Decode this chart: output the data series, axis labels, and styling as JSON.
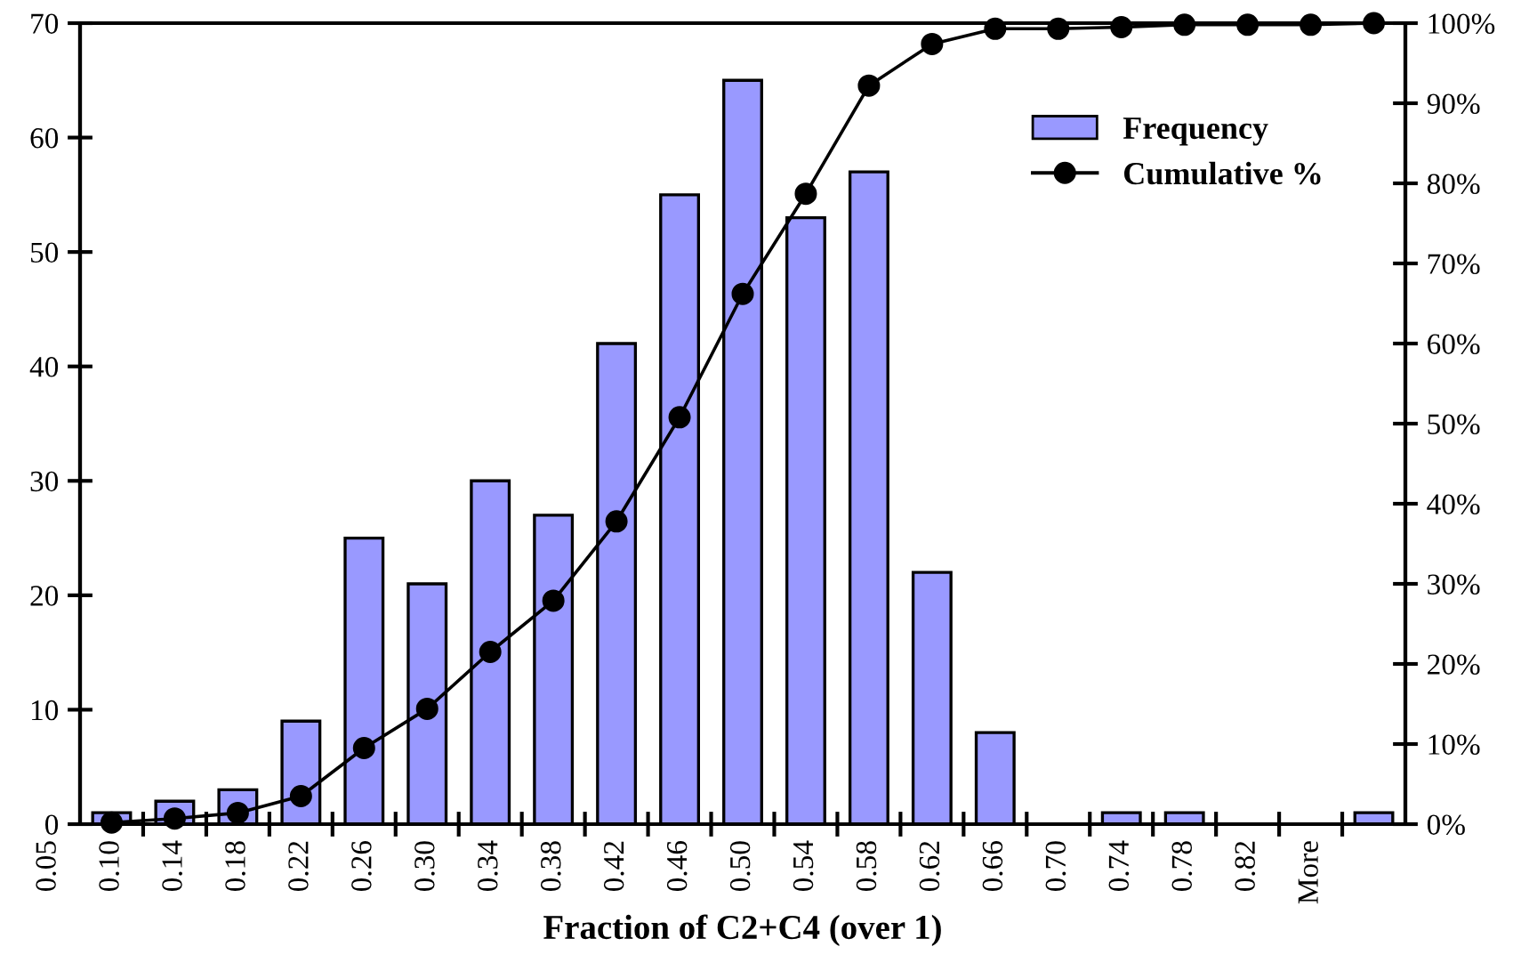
{
  "chart_data": {
    "type": "bar",
    "xlabel": "Fraction of C2+C4 (over 1)",
    "categories": [
      "0.05",
      "0.10",
      "0.14",
      "0.18",
      "0.22",
      "0.26",
      "0.30",
      "0.34",
      "0.38",
      "0.42",
      "0.46",
      "0.50",
      "0.54",
      "0.58",
      "0.62",
      "0.66",
      "0.70",
      "0.74",
      "0.78",
      "0.82",
      "More",
      null
    ],
    "series": [
      {
        "name": "Frequency",
        "color": "#9999ff",
        "values": [
          null,
          1,
          2,
          3,
          9,
          25,
          21,
          30,
          27,
          42,
          55,
          65,
          53,
          57,
          22,
          8,
          0,
          1,
          1,
          0,
          0,
          1
        ]
      },
      {
        "name": "Cumulative %",
        "type": "line",
        "axis": "y2",
        "color": "#000000",
        "marker": "circle",
        "values": [
          null,
          0.2,
          0.7,
          1.4,
          3.5,
          9.5,
          14.4,
          21.5,
          27.9,
          37.8,
          50.8,
          66.2,
          78.7,
          92.2,
          97.4,
          99.3,
          99.3,
          99.5,
          99.8,
          99.8,
          99.8,
          100
        ]
      }
    ],
    "ylim": [
      0,
      70
    ],
    "yticks": [
      0,
      10,
      20,
      30,
      40,
      50,
      60,
      70
    ],
    "y2lim": [
      0,
      100
    ],
    "y2ticks": [
      {
        "value": 0,
        "label": "0%"
      },
      {
        "value": 10,
        "label": "10%"
      },
      {
        "value": 20,
        "label": "20%"
      },
      {
        "value": 30,
        "label": "30%"
      },
      {
        "value": 40,
        "label": "40%"
      },
      {
        "value": 50,
        "label": "50%"
      },
      {
        "value": 60,
        "label": "60%"
      },
      {
        "value": 70,
        "label": "70%"
      },
      {
        "value": 80,
        "label": "80%"
      },
      {
        "value": 90,
        "label": "90%"
      },
      {
        "value": 100,
        "label": "100%"
      }
    ],
    "grid": false,
    "legend": "top right"
  }
}
